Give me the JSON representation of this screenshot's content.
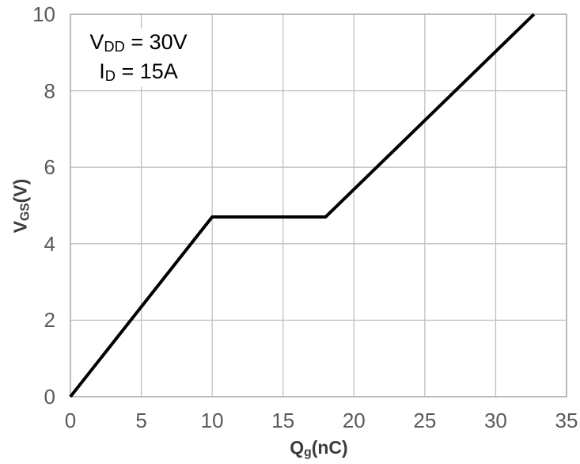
{
  "chart_data": {
    "type": "line",
    "title": "",
    "xlabel": "Qg(nC)",
    "xlabel_parts": [
      {
        "text": "Q"
      },
      {
        "text": "g",
        "sub": true
      },
      {
        "text": "(nC)"
      }
    ],
    "ylabel": "VGS(V)",
    "ylabel_parts": [
      {
        "text": "V"
      },
      {
        "text": "GS",
        "sub": true
      },
      {
        "text": "(V)"
      }
    ],
    "xlim": [
      0,
      35
    ],
    "ylim": [
      0,
      10
    ],
    "x_ticks": [
      0,
      5,
      10,
      15,
      20,
      25,
      30,
      35
    ],
    "y_ticks": [
      0,
      2,
      4,
      6,
      8,
      10
    ],
    "grid": true,
    "legend": "none",
    "annotation": {
      "lines": [
        {
          "plain": "VDD = 30V",
          "parts": [
            {
              "text": "V"
            },
            {
              "text": "DD",
              "sub": true
            },
            {
              "text": " = 30V"
            }
          ]
        },
        {
          "plain": "ID = 15A",
          "parts": [
            {
              "text": "I"
            },
            {
              "text": "D",
              "sub": true
            },
            {
              "text": " = 15A"
            }
          ]
        }
      ]
    },
    "series": [
      {
        "name": "gate-charge-curve",
        "color": "#000000",
        "stroke_width": 4,
        "points": [
          [
            0,
            0
          ],
          [
            10,
            4.7
          ],
          [
            18,
            4.7
          ],
          [
            32.7,
            10
          ]
        ]
      }
    ],
    "colors": {
      "gridline": "#c0c0c0",
      "axis_border": "#a6a6a6",
      "tick_label": "#595959",
      "axis_title": "#3b3b3b",
      "curve": "#000000",
      "background": "#ffffff"
    }
  }
}
